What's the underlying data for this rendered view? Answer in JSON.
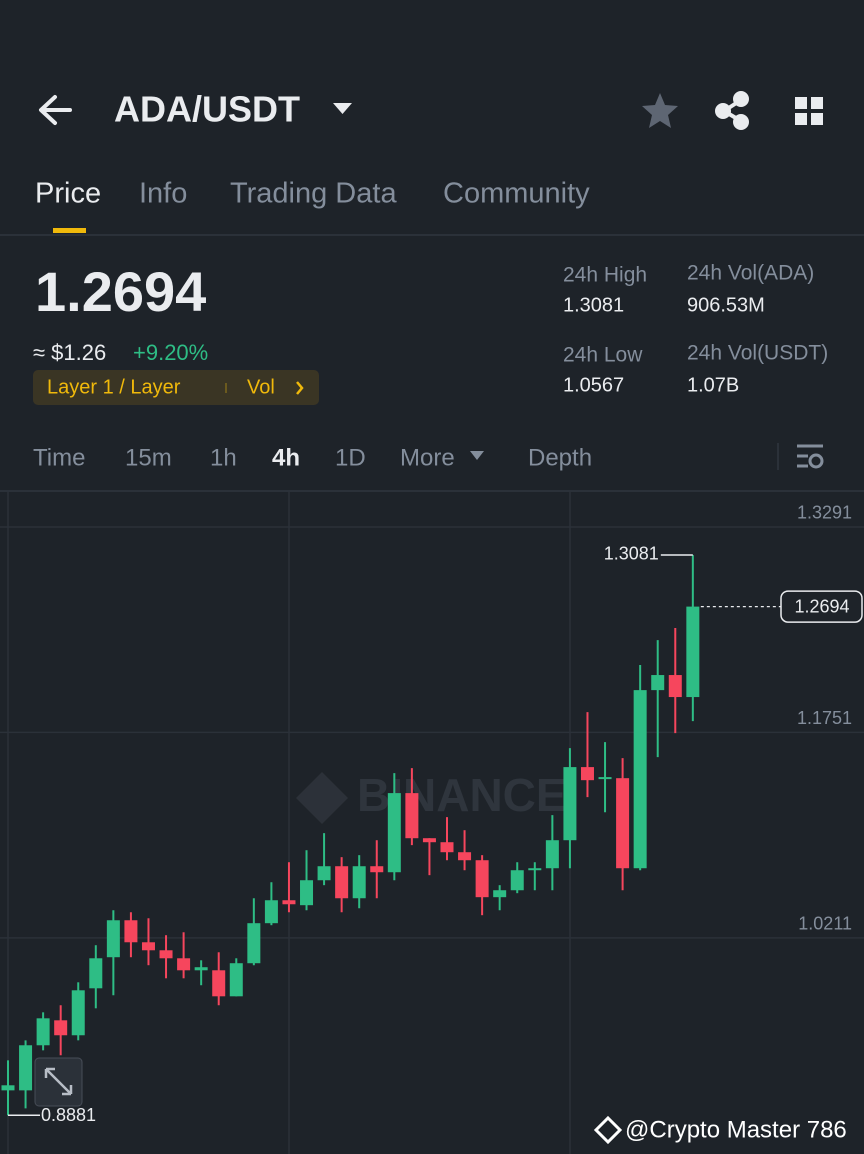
{
  "header": {
    "pair": "ADA/USDT",
    "tabs": [
      "Price",
      "Info",
      "Trading Data",
      "Community"
    ]
  },
  "summary": {
    "price": "1.2694",
    "approx": "≈ $1.26",
    "change": "+9.20%",
    "tag": "Layer 1 / Layer",
    "tag_link": "Vol",
    "stats": [
      {
        "label": "24h High",
        "value": "1.3081"
      },
      {
        "label": "24h Vol(ADA)",
        "value": "906.53M"
      },
      {
        "label": "24h Low",
        "value": "1.0567"
      },
      {
        "label": "24h Vol(USDT)",
        "value": "1.07B"
      }
    ]
  },
  "intervals": [
    "Time",
    "15m",
    "1h",
    "4h",
    "1D",
    "More",
    "Depth"
  ],
  "chart_data": {
    "type": "candlestick",
    "watermark": "BINANCE",
    "open": [
      0.9068,
      0.9068,
      0.9406,
      0.9593,
      0.9481,
      0.9833,
      1.0066,
      1.0343,
      1.0178,
      1.0118,
      1.0058,
      0.9968,
      0.9968,
      0.9773,
      1.0021,
      1.0321,
      1.0493,
      1.0456,
      1.0643,
      1.0748,
      1.0508,
      1.0748,
      1.0703,
      1.1296,
      1.0958,
      1.0928,
      1.0853,
      1.0793,
      1.0516,
      1.0568,
      1.0718,
      1.0733,
      1.0943,
      1.1491,
      1.1401,
      1.1408,
      1.0733,
      1.2068,
      1.2181,
      1.2016
    ],
    "high": [
      0.9293,
      0.9443,
      0.9653,
      0.9706,
      0.9878,
      1.0156,
      1.0418,
      1.0403,
      1.0358,
      1.0231,
      1.0253,
      1.0043,
      1.0103,
      1.0058,
      1.0508,
      1.0628,
      1.0778,
      1.0868,
      1.0996,
      1.0816,
      1.0831,
      1.0943,
      1.1446,
      1.1483,
      1.0958,
      1.1116,
      1.1018,
      1.0831,
      1.0606,
      1.0778,
      1.0778,
      1.1131,
      1.1633,
      1.1903,
      1.1678,
      1.1558,
      1.2256,
      1.2443,
      1.2534,
      1.3081
    ],
    "low": [
      0.8881,
      0.8933,
      0.9368,
      0.9331,
      0.9443,
      0.9683,
      0.9781,
      1.0066,
      1.0006,
      0.9908,
      0.9908,
      0.9856,
      0.9706,
      0.9773,
      1.0006,
      1.0306,
      1.0403,
      1.0418,
      1.0606,
      1.0403,
      1.0433,
      1.0508,
      1.0643,
      1.0906,
      1.0681,
      1.0793,
      1.0718,
      1.0381,
      1.0418,
      1.0546,
      1.0568,
      1.0568,
      1.0733,
      1.1266,
      1.1153,
      1.0568,
      1.0718,
      1.1566,
      1.1746,
      1.1836
    ],
    "close": [
      0.9106,
      0.9406,
      0.9608,
      0.9481,
      0.9818,
      1.0058,
      1.0343,
      1.0178,
      1.0118,
      1.0058,
      0.9968,
      0.9991,
      0.9773,
      1.0021,
      1.0321,
      1.0493,
      1.0463,
      1.0643,
      1.0748,
      1.0508,
      1.0748,
      1.0703,
      1.1296,
      1.0958,
      1.0928,
      1.0853,
      1.0793,
      1.0516,
      1.0568,
      1.0718,
      1.0733,
      1.0943,
      1.1491,
      1.1393,
      1.1416,
      1.0733,
      1.2068,
      1.2181,
      1.2016,
      1.2694
    ],
    "ylim": [
      0.8591,
      1.3553
    ],
    "yticks": [
      1.3291,
      1.1751,
      1.0211
    ],
    "grid": true,
    "up_color": "#2ebd85",
    "down_color": "#f6465d",
    "high_label": 1.3081,
    "low_label": 0.8881,
    "last_price": 1.2694
  },
  "footer": {
    "credit": "@Crypto Master 786"
  }
}
